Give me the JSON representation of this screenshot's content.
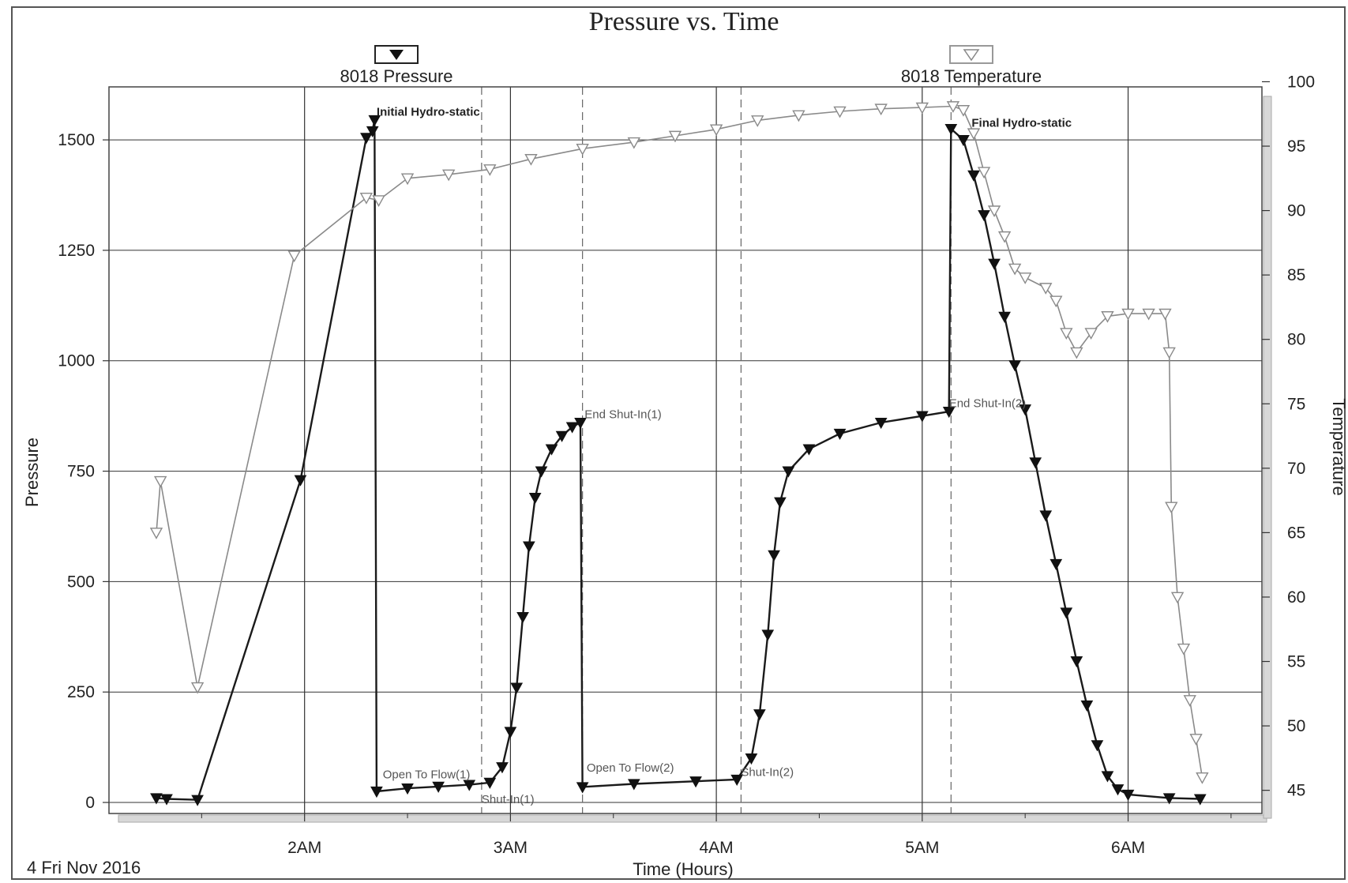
{
  "chart_data": {
    "type": "line",
    "title": "Pressure vs. Time",
    "date_label": "4 Fri Nov 2016",
    "xlabel": "Time (Hours)",
    "ylabel": "Pressure",
    "y2label": "Temperature",
    "x_unit": "hours",
    "x_range": [
      1.05,
      6.65
    ],
    "x_ticks": [
      {
        "v": 2,
        "label": "2AM"
      },
      {
        "v": 3,
        "label": "3AM"
      },
      {
        "v": 4,
        "label": "4AM"
      },
      {
        "v": 5,
        "label": "5AM"
      },
      {
        "v": 6,
        "label": "6AM"
      }
    ],
    "ylim": [
      -25,
      1620
    ],
    "y_ticks": [
      0,
      250,
      500,
      750,
      1000,
      1250,
      1500
    ],
    "y2lim": [
      43.2,
      99.6
    ],
    "y2_ticks": [
      45,
      50,
      55,
      60,
      65,
      70,
      75,
      80,
      85,
      90,
      95,
      100
    ],
    "grid": true,
    "legend": "top",
    "series": [
      {
        "name": "8018 Pressure",
        "axis": "left",
        "marker": "filled-triangle-down",
        "color": "#1a1a1a",
        "points": [
          [
            1.28,
            10
          ],
          [
            1.33,
            8
          ],
          [
            1.48,
            6
          ],
          [
            1.98,
            730
          ],
          [
            2.3,
            1505
          ],
          [
            2.33,
            1520
          ],
          [
            2.34,
            1545
          ],
          [
            2.35,
            25
          ],
          [
            2.5,
            32
          ],
          [
            2.65,
            36
          ],
          [
            2.8,
            40
          ],
          [
            2.9,
            45
          ],
          [
            2.96,
            80
          ],
          [
            3.0,
            160
          ],
          [
            3.03,
            260
          ],
          [
            3.06,
            420
          ],
          [
            3.09,
            580
          ],
          [
            3.12,
            690
          ],
          [
            3.15,
            750
          ],
          [
            3.2,
            800
          ],
          [
            3.25,
            830
          ],
          [
            3.3,
            850
          ],
          [
            3.34,
            860
          ],
          [
            3.35,
            35
          ],
          [
            3.6,
            42
          ],
          [
            3.9,
            48
          ],
          [
            4.1,
            52
          ],
          [
            4.17,
            100
          ],
          [
            4.21,
            200
          ],
          [
            4.25,
            380
          ],
          [
            4.28,
            560
          ],
          [
            4.31,
            680
          ],
          [
            4.35,
            750
          ],
          [
            4.45,
            800
          ],
          [
            4.6,
            835
          ],
          [
            4.8,
            860
          ],
          [
            5.0,
            875
          ],
          [
            5.13,
            885
          ],
          [
            5.14,
            1525
          ],
          [
            5.2,
            1500
          ],
          [
            5.25,
            1420
          ],
          [
            5.3,
            1330
          ],
          [
            5.35,
            1220
          ],
          [
            5.4,
            1100
          ],
          [
            5.45,
            990
          ],
          [
            5.5,
            890
          ],
          [
            5.55,
            770
          ],
          [
            5.6,
            650
          ],
          [
            5.65,
            540
          ],
          [
            5.7,
            430
          ],
          [
            5.75,
            320
          ],
          [
            5.8,
            220
          ],
          [
            5.85,
            130
          ],
          [
            5.9,
            60
          ],
          [
            5.95,
            30
          ],
          [
            6.0,
            18
          ],
          [
            6.2,
            10
          ],
          [
            6.35,
            8
          ]
        ]
      },
      {
        "name": "8018 Temperature",
        "axis": "right",
        "marker": "hollow-triangle-down",
        "color": "#8a8a8a",
        "points": [
          [
            1.28,
            65
          ],
          [
            1.3,
            69
          ],
          [
            1.48,
            53
          ],
          [
            1.95,
            86.5
          ],
          [
            2.3,
            91
          ],
          [
            2.36,
            90.8
          ],
          [
            2.5,
            92.5
          ],
          [
            2.7,
            92.8
          ],
          [
            2.9,
            93.2
          ],
          [
            3.1,
            94
          ],
          [
            3.35,
            94.8
          ],
          [
            3.6,
            95.3
          ],
          [
            3.8,
            95.8
          ],
          [
            4.0,
            96.3
          ],
          [
            4.2,
            97
          ],
          [
            4.4,
            97.4
          ],
          [
            4.6,
            97.7
          ],
          [
            4.8,
            97.9
          ],
          [
            5.0,
            98
          ],
          [
            5.15,
            98.1
          ],
          [
            5.2,
            97.8
          ],
          [
            5.25,
            96
          ],
          [
            5.3,
            93
          ],
          [
            5.35,
            90
          ],
          [
            5.4,
            88
          ],
          [
            5.45,
            85.5
          ],
          [
            5.5,
            84.8
          ],
          [
            5.6,
            84
          ],
          [
            5.65,
            83
          ],
          [
            5.7,
            80.5
          ],
          [
            5.75,
            79
          ],
          [
            5.82,
            80.5
          ],
          [
            5.9,
            81.8
          ],
          [
            6.0,
            82
          ],
          [
            6.1,
            82
          ],
          [
            6.18,
            82
          ],
          [
            6.2,
            79
          ],
          [
            6.21,
            67
          ],
          [
            6.24,
            60
          ],
          [
            6.27,
            56
          ],
          [
            6.3,
            52
          ],
          [
            6.33,
            49
          ],
          [
            6.36,
            46
          ]
        ]
      }
    ],
    "annotations": [
      {
        "text": "Initial Hydro-static",
        "x": 2.35,
        "y": 1555,
        "bold": true
      },
      {
        "text": "Final Hydro-static",
        "x": 5.24,
        "y": 1530,
        "bold": true
      },
      {
        "text": "End Shut-In(1)",
        "x": 3.36,
        "y": 870,
        "bold": false
      },
      {
        "text": "End Shut-In(2)",
        "x": 5.13,
        "y": 895,
        "bold": false
      },
      {
        "text": "Open To Flow(1)",
        "x": 2.38,
        "y": 55,
        "bold": false
      },
      {
        "text": "Shut-In(1)",
        "x": 2.86,
        "y": -2,
        "bold": false
      },
      {
        "text": "Open To Flow(2)",
        "x": 3.37,
        "y": 70,
        "bold": false
      },
      {
        "text": "Shut-In(2)",
        "x": 4.12,
        "y": 60,
        "bold": false
      }
    ],
    "event_lines": [
      2.86,
      3.35,
      4.12,
      5.14
    ]
  }
}
